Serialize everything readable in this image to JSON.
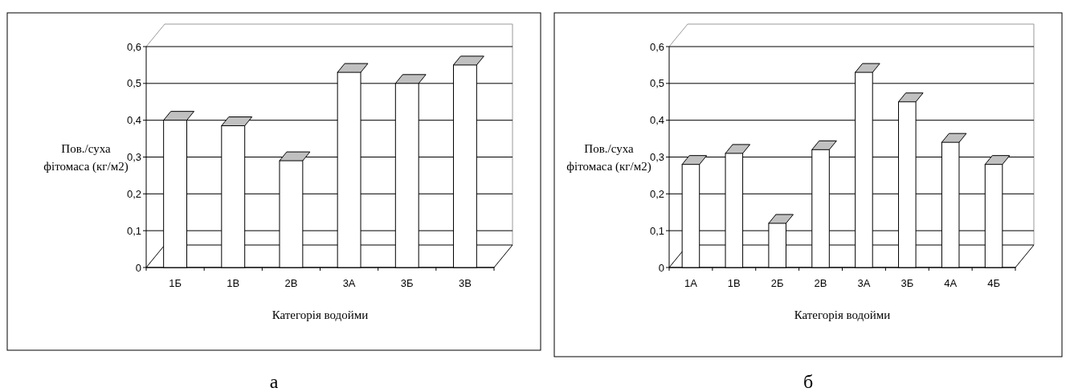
{
  "chart_data": [
    {
      "type": "bar",
      "xlabel": "Категорія водойми",
      "ylabel": "Пов./суха фітомаса (кг/м2)",
      "categories": [
        "1Б",
        "1В",
        "2В",
        "3А",
        "3Б",
        "3В"
      ],
      "values": [
        0.4,
        0.385,
        0.29,
        0.53,
        0.5,
        0.55
      ],
      "color": "#ffffff",
      "ylim": [
        0,
        0.6
      ],
      "yticks": [
        {
          "value": 0,
          "label": "0"
        },
        {
          "value": 0.1,
          "label": "0,1"
        },
        {
          "value": 0.2,
          "label": "0,2"
        },
        {
          "value": 0.3,
          "label": "0,3"
        },
        {
          "value": 0.4,
          "label": "0,4"
        },
        {
          "value": 0.5,
          "label": "0,5"
        },
        {
          "value": 0.6,
          "label": "0,6"
        }
      ],
      "grid": "y",
      "annotations": [
        "а"
      ]
    },
    {
      "type": "bar",
      "xlabel": "Категорія водойми",
      "ylabel": "Пов./суха фітомаса (кг/м2)",
      "categories": [
        "1А",
        "1В",
        "2Б",
        "2В",
        "3А",
        "3Б",
        "4А",
        "4Б"
      ],
      "values": [
        0.28,
        0.31,
        0.12,
        0.32,
        0.53,
        0.45,
        0.34,
        0.28
      ],
      "color": "#ffffff",
      "ylim": [
        0,
        0.6
      ],
      "yticks": [
        {
          "value": 0,
          "label": "0"
        },
        {
          "value": 0.1,
          "label": "0,1"
        },
        {
          "value": 0.2,
          "label": "0,2"
        },
        {
          "value": 0.3,
          "label": "0,3"
        },
        {
          "value": 0.4,
          "label": "0,4"
        },
        {
          "value": 0.5,
          "label": "0,5"
        },
        {
          "value": 0.6,
          "label": "0,6"
        }
      ],
      "grid": "y",
      "annotations": [
        "б"
      ]
    }
  ]
}
